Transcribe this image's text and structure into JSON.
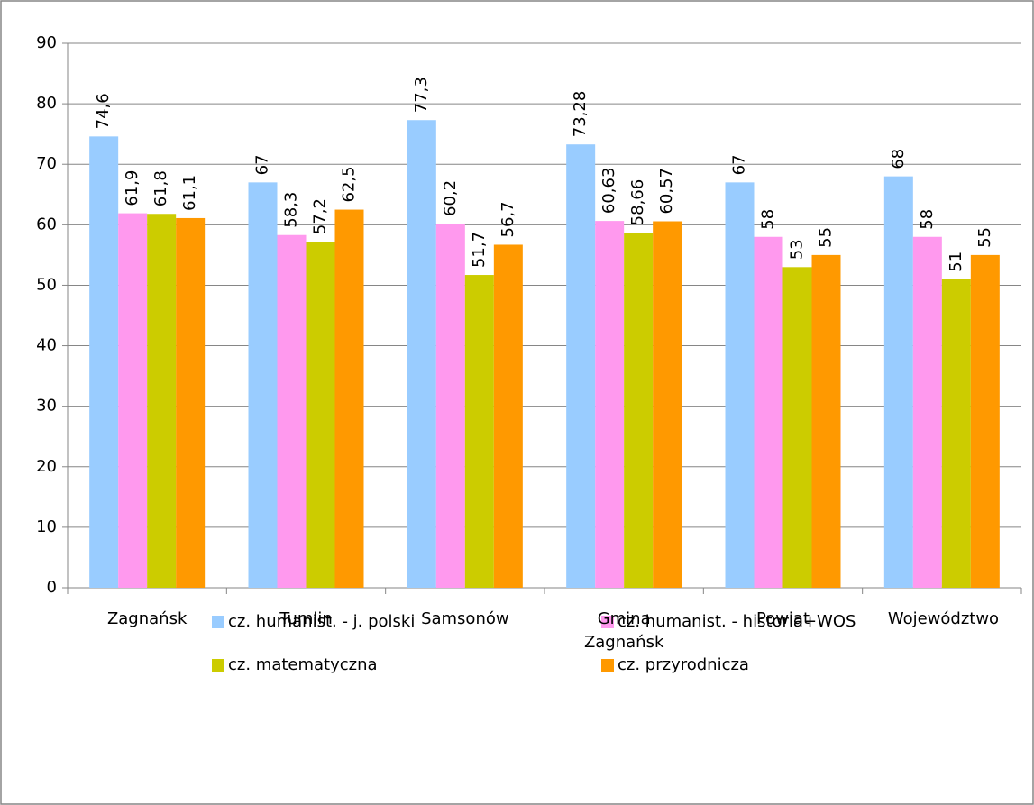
{
  "chart_data": {
    "type": "bar",
    "categories": [
      "Zagnańsk",
      "Tumlin",
      "Samsonów",
      "Gmina Zagnańsk",
      "Powiat",
      "Województwo"
    ],
    "series": [
      {
        "name": "cz. humanist. - j. polski",
        "color": "#99ccff",
        "values": [
          74.6,
          67,
          77.3,
          73.28,
          67,
          68
        ],
        "value_labels": [
          "74,6",
          "67",
          "77,3",
          "73,28",
          "67",
          "68"
        ]
      },
      {
        "name": "cz. humanist. - historia+WOS",
        "color": "#ff99ee",
        "values": [
          61.9,
          58.3,
          60.2,
          60.63,
          58,
          58
        ],
        "value_labels": [
          "61,9",
          "58,3",
          "60,2",
          "60,63",
          "58",
          "58"
        ]
      },
      {
        "name": "cz. matematyczna",
        "color": "#cccc00",
        "values": [
          61.8,
          57.2,
          51.7,
          58.66,
          53,
          51
        ],
        "value_labels": [
          "61,8",
          "57,2",
          "51,7",
          "58,66",
          "53",
          "51"
        ]
      },
      {
        "name": "cz. przyrodnicza",
        "color": "#ff9900",
        "values": [
          61.1,
          62.5,
          56.7,
          60.57,
          55,
          55
        ],
        "value_labels": [
          "61,1",
          "62,5",
          "56,7",
          "60,57",
          "55",
          "55"
        ]
      }
    ],
    "ylim": [
      0,
      90
    ],
    "yticks": [
      0,
      10,
      20,
      30,
      40,
      50,
      60,
      70,
      80,
      90
    ],
    "grid": true,
    "legend": "bottom"
  }
}
